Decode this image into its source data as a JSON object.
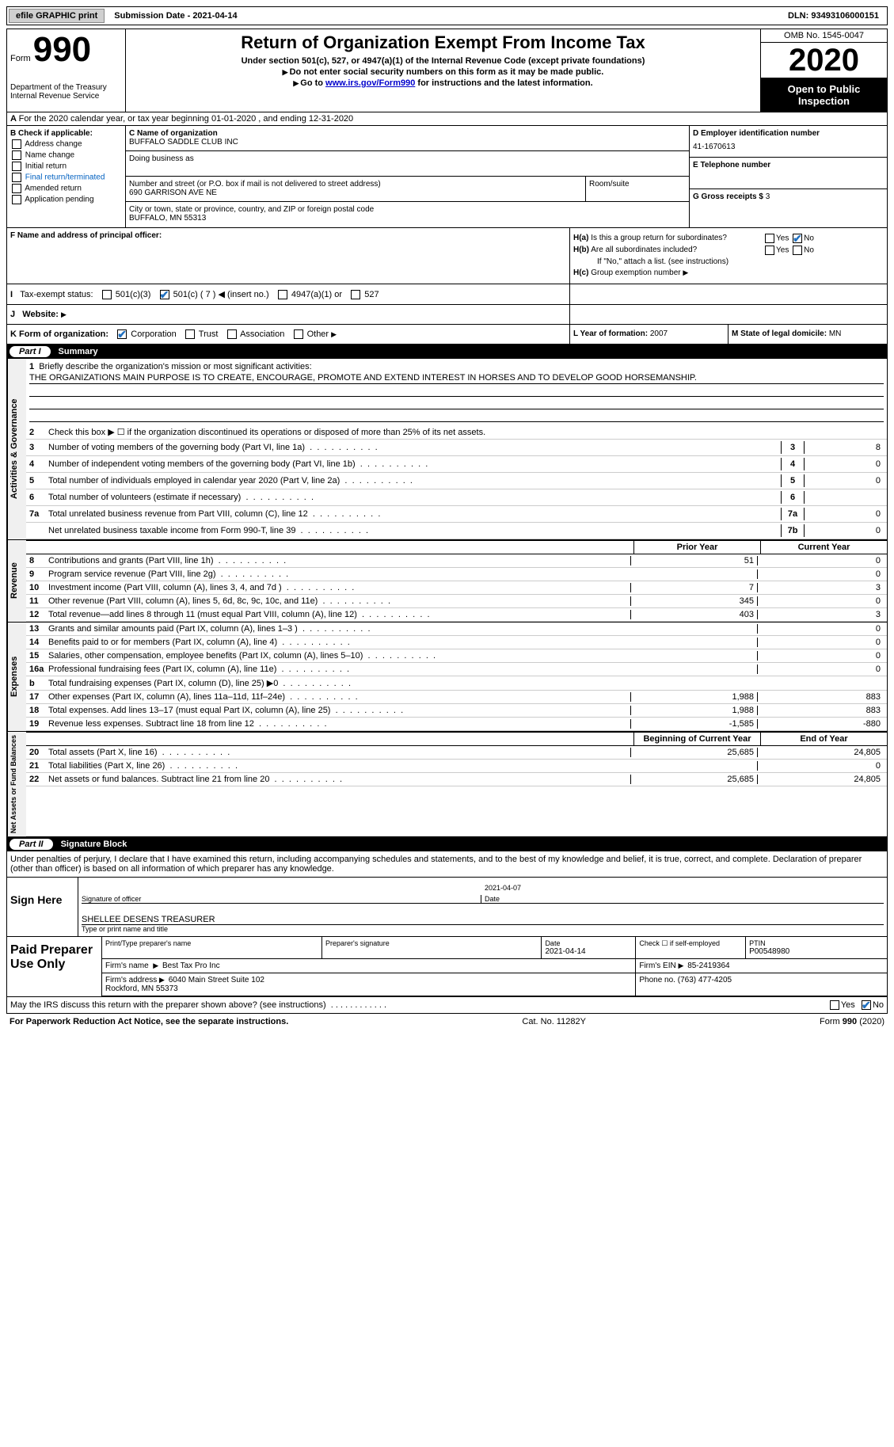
{
  "topbar": {
    "efile": "efile GRAPHIC print",
    "sub_date": "Submission Date - 2021-04-14",
    "dln": "DLN: 93493106000151"
  },
  "hdr": {
    "form_word": "Form",
    "form_num": "990",
    "dept": "Department of the Treasury\nInternal Revenue Service",
    "title": "Return of Organization Exempt From Income Tax",
    "sub1": "Under section 501(c), 527, or 4947(a)(1) of the Internal Revenue Code (except private foundations)",
    "sub2": "Do not enter social security numbers on this form as it may be made public.",
    "sub3_pre": "Go to ",
    "sub3_link": "www.irs.gov/Form990",
    "sub3_post": " for instructions and the latest information.",
    "omb": "OMB No. 1545-0047",
    "year": "2020",
    "insp": "Open to Public Inspection"
  },
  "row_a": "For the 2020 calendar year, or tax year beginning 01-01-2020    , and ending 12-31-2020",
  "col_b": {
    "label": "B Check if applicable:",
    "items": [
      "Address change",
      "Name change",
      "Initial return",
      "Final return/terminated",
      "Amended return",
      "Application pending"
    ]
  },
  "col_c": {
    "name_lbl": "C Name of organization",
    "name": "BUFFALO SADDLE CLUB INC",
    "dba_lbl": "Doing business as",
    "dba": "",
    "addr_lbl": "Number and street (or P.O. box if mail is not delivered to street address)",
    "addr": "690 GARRISON AVE NE",
    "room_lbl": "Room/suite",
    "city_lbl": "City or town, state or province, country, and ZIP or foreign postal code",
    "city": "BUFFALO, MN  55313"
  },
  "col_d": {
    "ein_lbl": "D Employer identification number",
    "ein": "41-1670613",
    "tel_lbl": "E Telephone number",
    "tel": "",
    "gross_lbl": "G Gross receipts $",
    "gross": "3"
  },
  "f": {
    "lbl": "F  Name and address of principal officer:"
  },
  "h": {
    "ha_lbl": "H(a)  Is this a group return for subordinates?",
    "hb_lbl": "H(b)  Are all subordinates included?",
    "hb_note": "If \"No,\" attach a list. (see instructions)",
    "hc_lbl": "H(c)  Group exemption number",
    "yes": "Yes",
    "no": "No"
  },
  "i": {
    "lbl": "Tax-exempt status:",
    "opts": [
      "501(c)(3)",
      "501(c) ( 7 )",
      "(insert no.)",
      "4947(a)(1) or",
      "527"
    ]
  },
  "j": {
    "lbl": "Website:"
  },
  "k": {
    "lbl": "K Form of organization:",
    "opts": [
      "Corporation",
      "Trust",
      "Association",
      "Other"
    ]
  },
  "l": {
    "lbl": "L Year of formation:",
    "val": "2007"
  },
  "m": {
    "lbl": "M State of legal domicile:",
    "val": "MN"
  },
  "part1": {
    "num": "Part I",
    "title": "Summary"
  },
  "mission": {
    "lbl": "Briefly describe the organization's mission or most significant activities:",
    "text": "THE ORGANIZATIONS MAIN PURPOSE IS TO CREATE, ENCOURAGE, PROMOTE AND EXTEND INTEREST IN HORSES AND TO DEVELOP GOOD HORSEMANSHIP."
  },
  "lines_gov": [
    {
      "n": "2",
      "t": "Check this box ▶ ☐ if the organization discontinued its operations or disposed of more than 25% of its net assets."
    },
    {
      "n": "3",
      "t": "Number of voting members of the governing body (Part VI, line 1a)",
      "box": "3",
      "v": "8"
    },
    {
      "n": "4",
      "t": "Number of independent voting members of the governing body (Part VI, line 1b)",
      "box": "4",
      "v": "0"
    },
    {
      "n": "5",
      "t": "Total number of individuals employed in calendar year 2020 (Part V, line 2a)",
      "box": "5",
      "v": "0"
    },
    {
      "n": "6",
      "t": "Total number of volunteers (estimate if necessary)",
      "box": "6",
      "v": ""
    },
    {
      "n": "7a",
      "t": "Total unrelated business revenue from Part VIII, column (C), line 12",
      "box": "7a",
      "v": "0"
    },
    {
      "n": "",
      "t": "Net unrelated business taxable income from Form 990-T, line 39",
      "box": "7b",
      "v": "0"
    }
  ],
  "col_hdrs": {
    "prior": "Prior Year",
    "current": "Current Year"
  },
  "lines_rev": [
    {
      "n": "8",
      "t": "Contributions and grants (Part VIII, line 1h)",
      "c1": "51",
      "c2": "0"
    },
    {
      "n": "9",
      "t": "Program service revenue (Part VIII, line 2g)",
      "c1": "",
      "c2": "0"
    },
    {
      "n": "10",
      "t": "Investment income (Part VIII, column (A), lines 3, 4, and 7d )",
      "c1": "7",
      "c2": "3"
    },
    {
      "n": "11",
      "t": "Other revenue (Part VIII, column (A), lines 5, 6d, 8c, 9c, 10c, and 11e)",
      "c1": "345",
      "c2": "0"
    },
    {
      "n": "12",
      "t": "Total revenue—add lines 8 through 11 (must equal Part VIII, column (A), line 12)",
      "c1": "403",
      "c2": "3"
    }
  ],
  "lines_exp": [
    {
      "n": "13",
      "t": "Grants and similar amounts paid (Part IX, column (A), lines 1–3 )",
      "c1": "",
      "c2": "0"
    },
    {
      "n": "14",
      "t": "Benefits paid to or for members (Part IX, column (A), line 4)",
      "c1": "",
      "c2": "0"
    },
    {
      "n": "15",
      "t": "Salaries, other compensation, employee benefits (Part IX, column (A), lines 5–10)",
      "c1": "",
      "c2": "0"
    },
    {
      "n": "16a",
      "t": "Professional fundraising fees (Part IX, column (A), line 11e)",
      "c1": "",
      "c2": "0"
    },
    {
      "n": "b",
      "t": "Total fundraising expenses (Part IX, column (D), line 25) ▶0",
      "c1": "shaded",
      "c2": "shaded"
    },
    {
      "n": "17",
      "t": "Other expenses (Part IX, column (A), lines 11a–11d, 11f–24e)",
      "c1": "1,988",
      "c2": "883"
    },
    {
      "n": "18",
      "t": "Total expenses. Add lines 13–17 (must equal Part IX, column (A), line 25)",
      "c1": "1,988",
      "c2": "883"
    },
    {
      "n": "19",
      "t": "Revenue less expenses. Subtract line 18 from line 12",
      "c1": "-1,585",
      "c2": "-880"
    }
  ],
  "col_hdrs2": {
    "begin": "Beginning of Current Year",
    "end": "End of Year"
  },
  "lines_net": [
    {
      "n": "20",
      "t": "Total assets (Part X, line 16)",
      "c1": "25,685",
      "c2": "24,805"
    },
    {
      "n": "21",
      "t": "Total liabilities (Part X, line 26)",
      "c1": "",
      "c2": "0"
    },
    {
      "n": "22",
      "t": "Net assets or fund balances. Subtract line 21 from line 20",
      "c1": "25,685",
      "c2": "24,805"
    }
  ],
  "vtabs": {
    "gov": "Activities & Governance",
    "rev": "Revenue",
    "exp": "Expenses",
    "net": "Net Assets or Fund Balances"
  },
  "part2": {
    "num": "Part II",
    "title": "Signature Block"
  },
  "sig": {
    "decl": "Under penalties of perjury, I declare that I have examined this return, including accompanying schedules and statements, and to the best of my knowledge and belief, it is true, correct, and complete. Declaration of preparer (other than officer) is based on all information of which preparer has any knowledge.",
    "sign_here": "Sign Here",
    "sig_lbl": "Signature of officer",
    "date_lbl": "Date",
    "date": "2021-04-07",
    "name": "SHELLEE DESENS  TREASURER",
    "name_lbl": "Type or print name and title"
  },
  "prep": {
    "title": "Paid Preparer Use Only",
    "name_lbl": "Print/Type preparer's name",
    "sig_lbl": "Preparer's signature",
    "date_lbl": "Date",
    "date": "2021-04-14",
    "self_lbl": "Check ☐ if self-employed",
    "ptin_lbl": "PTIN",
    "ptin": "P00548980",
    "firm_name_lbl": "Firm's name",
    "firm_name": "Best Tax Pro Inc",
    "firm_ein_lbl": "Firm's EIN",
    "firm_ein": "85-2419364",
    "firm_addr_lbl": "Firm's address",
    "firm_addr": "6040 Main Street Suite 102\nRockford, MN  55373",
    "phone_lbl": "Phone no.",
    "phone": "(763) 477-4205"
  },
  "irs_discuss": "May the IRS discuss this return with the preparer shown above? (see instructions)",
  "footer": {
    "left": "For Paperwork Reduction Act Notice, see the separate instructions.",
    "mid": "Cat. No. 11282Y",
    "right": "Form 990 (2020)"
  },
  "colors": {
    "link": "#0000cc",
    "check": "#2070c0",
    "bg_shade": "#d8d8d8",
    "vtab_bg": "#f0f0f0"
  }
}
